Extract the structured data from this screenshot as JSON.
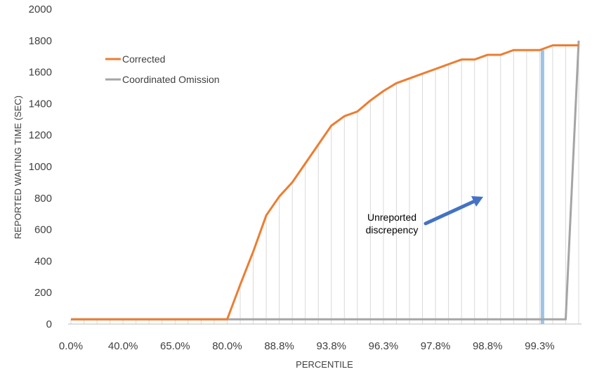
{
  "chart_data": {
    "type": "line",
    "xlabel": "PERCENTILE",
    "ylabel": "REPORTED WAITING TIME (SEC)",
    "ylim": [
      0,
      2000
    ],
    "yticks": [
      0,
      200,
      400,
      600,
      800,
      1000,
      1200,
      1400,
      1600,
      1800,
      2000
    ],
    "x_tick_labels": [
      "0.0%",
      "40.0%",
      "65.0%",
      "80.0%",
      "88.8%",
      "93.8%",
      "96.3%",
      "97.8%",
      "98.8%",
      "99.3%"
    ],
    "n_points": 40,
    "grid": "vertical",
    "legend": "top-left",
    "series": [
      {
        "name": "Corrected",
        "color": "#ED7D31",
        "values": [
          30,
          30,
          30,
          30,
          30,
          30,
          30,
          30,
          30,
          30,
          30,
          30,
          30,
          250,
          460,
          690,
          810,
          900,
          1020,
          1140,
          1260,
          1320,
          1350,
          1420,
          1480,
          1530,
          1560,
          1590,
          1620,
          1650,
          1680,
          1680,
          1710,
          1710,
          1740,
          1740,
          1740,
          1770,
          1770,
          1770
        ]
      },
      {
        "name": "Coordinated Omission",
        "color": "#A5A5A5",
        "values": [
          30,
          30,
          30,
          30,
          30,
          30,
          30,
          30,
          30,
          30,
          30,
          30,
          30,
          30,
          30,
          30,
          30,
          30,
          30,
          30,
          30,
          30,
          30,
          30,
          30,
          30,
          30,
          30,
          30,
          30,
          30,
          30,
          30,
          30,
          30,
          30,
          30,
          30,
          30,
          1800
        ]
      }
    ],
    "extended_values": {
      "corrected": [
        1770,
        1770,
        1770,
        1800,
        1800
      ],
      "coordinated_omission": [
        1800,
        1800,
        1800,
        1800,
        1800
      ]
    },
    "marker": {
      "value": 1740,
      "color": "#9DC3E6"
    },
    "annotation": {
      "text_line1": "Unreported",
      "text_line2": "discrepency",
      "arrow_color": "#4472C4"
    }
  }
}
